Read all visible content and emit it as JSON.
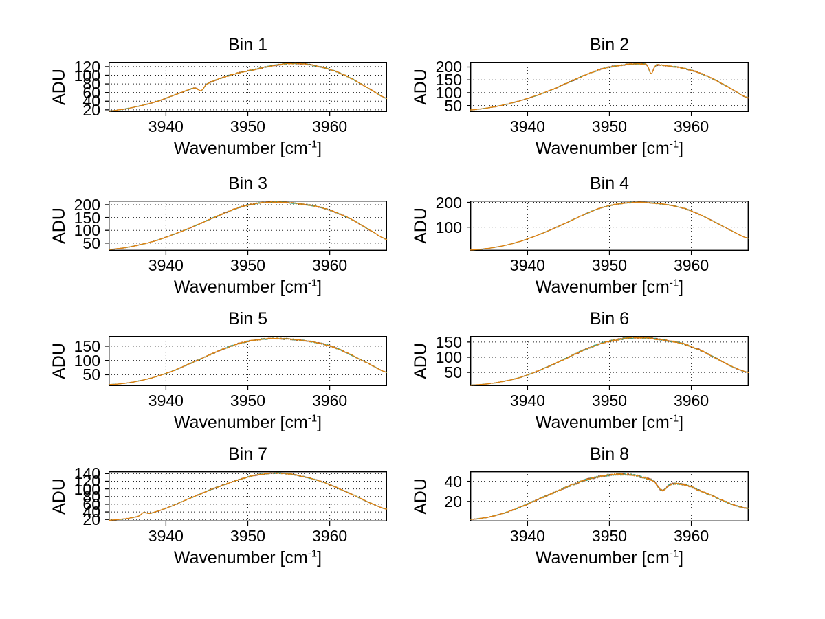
{
  "figure": {
    "background": "#ffffff",
    "axis_color": "#000000",
    "grid_color": "#222222",
    "grid_style": "dotted"
  },
  "axes_labels": {
    "ylabel": "ADU",
    "xlabel_pre": "Wavenumber [cm",
    "xlabel_sup": "-1",
    "xlabel_post": "]"
  },
  "chart_data": {
    "type": "line",
    "layout": {
      "rows": 4,
      "cols": 2,
      "grid": true,
      "legend": "none"
    },
    "xlabel": "Wavenumber [cm^-1]",
    "ylabel": "ADU",
    "xlim": [
      3933,
      3967
    ],
    "xticks": [
      3940,
      3950,
      3960
    ],
    "traces_per_panel": 3,
    "line_colors": [
      "#8a3b2a",
      "#2fa07c",
      "#e0820f"
    ],
    "x_samples": [
      3933,
      3935,
      3937,
      3939,
      3941,
      3943,
      3945,
      3947,
      3949,
      3951,
      3953,
      3955,
      3957,
      3959,
      3961,
      3963,
      3965,
      3967
    ],
    "bins": [
      {
        "title": "Bin 1",
        "ylim": [
          15,
          131
        ],
        "yticks": [
          20,
          40,
          60,
          80,
          100,
          120
        ],
        "values": [
          17,
          22,
          30,
          40,
          54,
          68,
          81,
          95,
          106,
          114,
          122,
          127,
          126,
          119,
          107,
          89,
          67,
          46
        ],
        "noise": 1.3,
        "seed": 11,
        "features": [
          {
            "type": "dip",
            "x": 3944.3,
            "amp": 12,
            "width": 0.35
          }
        ]
      },
      {
        "title": "Bin 2",
        "ylim": [
          25,
          220
        ],
        "yticks": [
          50,
          100,
          150,
          200
        ],
        "values": [
          33,
          40,
          52,
          68,
          88,
          112,
          140,
          168,
          192,
          205,
          212,
          210,
          205,
          195,
          177,
          148,
          113,
          79
        ],
        "noise": 2.2,
        "seed": 22,
        "features": [
          {
            "type": "dip",
            "x": 3955.1,
            "amp": 36,
            "width": 0.25
          }
        ]
      },
      {
        "title": "Bin 3",
        "ylim": [
          20,
          216
        ],
        "yticks": [
          50,
          100,
          150,
          200
        ],
        "values": [
          25,
          32,
          45,
          62,
          85,
          110,
          138,
          165,
          190,
          205,
          210,
          208,
          201,
          189,
          167,
          137,
          99,
          64
        ],
        "noise": 2.2,
        "seed": 33,
        "features": []
      },
      {
        "title": "Bin 4",
        "ylim": [
          5,
          207
        ],
        "yticks": [
          100,
          200
        ],
        "values": [
          8,
          14,
          25,
          42,
          65,
          92,
          122,
          152,
          178,
          193,
          200,
          198,
          191,
          177,
          151,
          119,
          84,
          55
        ],
        "noise": 1.8,
        "seed": 44,
        "features": []
      },
      {
        "title": "Bin 5",
        "ylim": [
          10,
          186
        ],
        "yticks": [
          50,
          100,
          150
        ],
        "values": [
          15,
          20,
          30,
          45,
          65,
          90,
          115,
          140,
          160,
          172,
          177,
          175,
          169,
          159,
          141,
          114,
          85,
          58
        ],
        "noise": 2.2,
        "seed": 55,
        "features": []
      },
      {
        "title": "Bin 6",
        "ylim": [
          5,
          170
        ],
        "yticks": [
          50,
          100,
          150
        ],
        "values": [
          8,
          12,
          20,
          33,
          52,
          75,
          100,
          125,
          145,
          158,
          164,
          162,
          155,
          144,
          124,
          97,
          69,
          50
        ],
        "noise": 2.4,
        "seed": 66,
        "features": []
      },
      {
        "title": "Bin 7",
        "ylim": [
          15,
          146
        ],
        "yticks": [
          20,
          40,
          60,
          80,
          100,
          120,
          140
        ],
        "values": [
          18,
          22,
          30,
          42,
          58,
          76,
          94,
          110,
          125,
          136,
          141,
          139,
          131,
          119,
          102,
          83,
          63,
          47
        ],
        "noise": 1.4,
        "seed": 77,
        "features": [
          {
            "type": "spike",
            "x": 3937.3,
            "amp": 7,
            "width": 0.3
          }
        ]
      },
      {
        "title": "Bin 8",
        "ylim": [
          0,
          50
        ],
        "yticks": [
          20,
          40
        ],
        "values": [
          2,
          4,
          8,
          14,
          21,
          28,
          35,
          41,
          45,
          47,
          46,
          42,
          38,
          37,
          31,
          24,
          17,
          13
        ],
        "noise": 0.9,
        "seed": 88,
        "features": [
          {
            "type": "dip",
            "x": 3956.4,
            "amp": 8,
            "width": 0.5
          }
        ]
      }
    ]
  }
}
